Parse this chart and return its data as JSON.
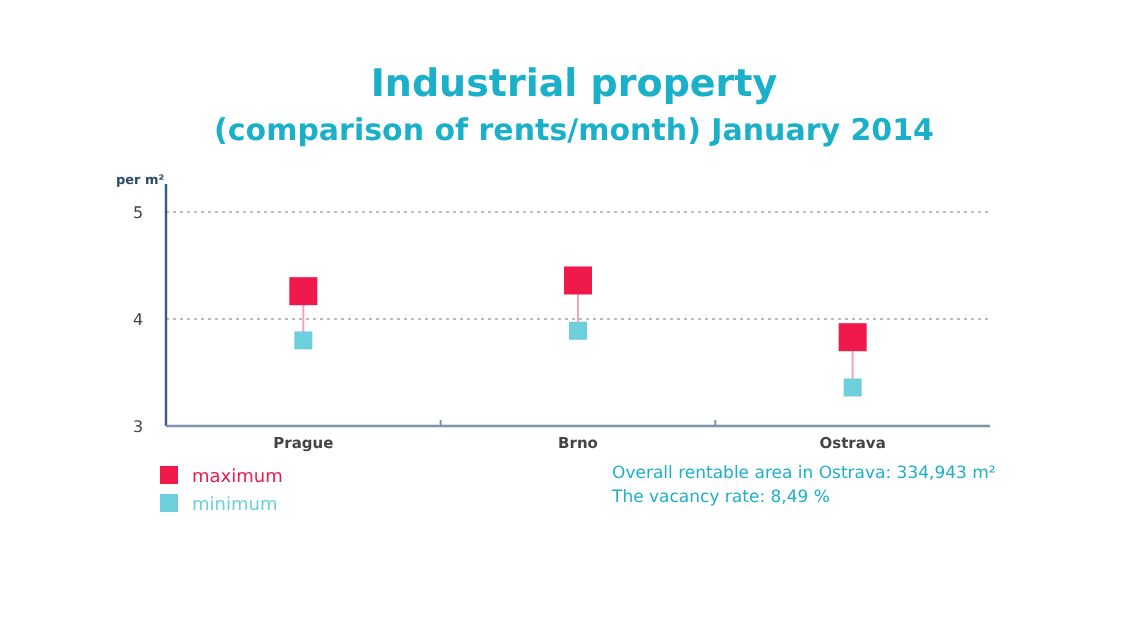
{
  "chart_data": {
    "type": "scatter",
    "title": "Industrial property",
    "subtitle": "(comparison of rents/month) January 2014",
    "ylabel": "per m²",
    "categories": [
      "Prague",
      "Brno",
      "Ostrava"
    ],
    "series": [
      {
        "name": "maximum",
        "color": "#f0194b",
        "values": [
          4.26,
          4.36,
          3.83
        ]
      },
      {
        "name": "minimum",
        "color": "#6dcfdc",
        "values": [
          3.8,
          3.89,
          3.36
        ]
      }
    ],
    "ylim": [
      3,
      5
    ],
    "yticks": [
      3,
      4,
      5
    ],
    "grid": "y",
    "legend": "bottom left",
    "marker": "square",
    "annotations": [
      "Overall rentable area in Ostrava: 334,943 m²",
      "The vacancy rate: 8,49 %"
    ]
  }
}
